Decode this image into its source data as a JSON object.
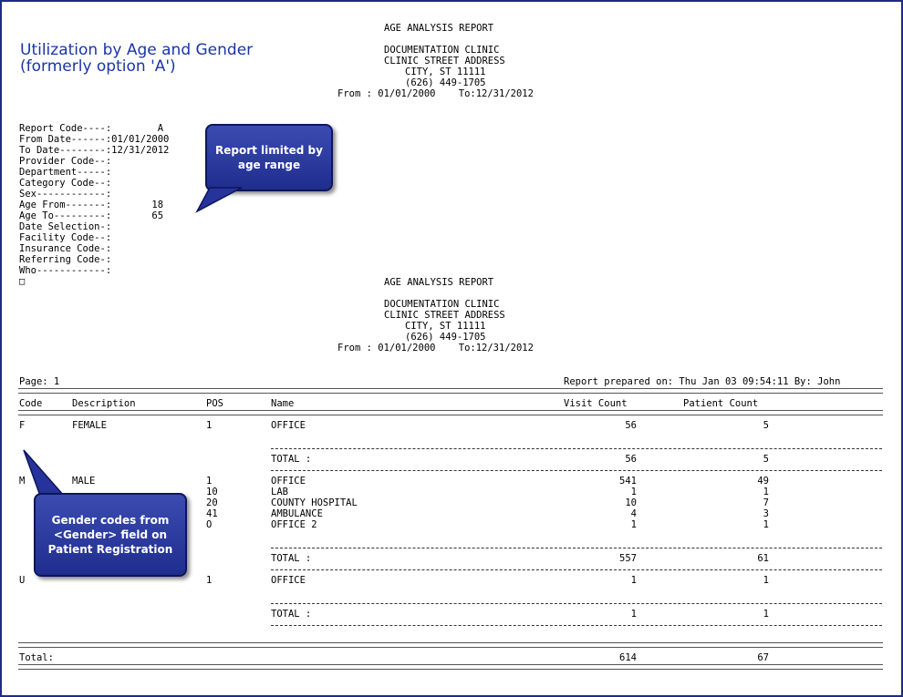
{
  "title": {
    "line1": "Utilization by Age and Gender",
    "line2": "(formerly option 'A')"
  },
  "report_header": {
    "name": "AGE ANALYSIS REPORT",
    "clinic": "DOCUMENTATION CLINIC",
    "address": "CLINIC STREET ADDRESS",
    "city": "CITY, ST 11111",
    "phone": "(626) 449-1705",
    "range": "From : 01/01/2000    To:12/31/2012"
  },
  "params": [
    "Report Code----:        A",
    "From Date------:01/01/2000",
    "To Date--------:12/31/2012",
    "Provider Code--:",
    "Department-----:",
    "Category Code--:",
    "Sex------------:",
    "Age From-------:       18",
    "Age To---------:       65",
    "Date Selection-:",
    "Facility Code--:",
    "Insurance Code-:",
    "Referring Code-:",
    "Who------------:",
    "□"
  ],
  "callouts": {
    "age": "Report limited by age range",
    "gender": "Gender codes from <Gender> field on Patient Registration"
  },
  "page_line": {
    "page": "Page: 1",
    "prepared": "Report prepared on: Thu Jan 03 09:54:11 By: John"
  },
  "columns": {
    "code": "Code",
    "description": "Description",
    "pos": "POS",
    "name": "Name",
    "visit": "Visit Count",
    "patient": "Patient Count"
  },
  "groups": [
    {
      "code": "F",
      "description": "FEMALE",
      "rows": [
        {
          "pos": "1",
          "name": "OFFICE",
          "visit": "56",
          "patient": "5"
        }
      ],
      "total_label": "TOTAL :",
      "total_visit": "56",
      "total_patient": "5"
    },
    {
      "code": "M",
      "description": "MALE",
      "rows": [
        {
          "pos": "1",
          "name": "OFFICE",
          "visit": "541",
          "patient": "49"
        },
        {
          "pos": "10",
          "name": "LAB",
          "visit": "1",
          "patient": "1"
        },
        {
          "pos": "20",
          "name": "COUNTY HOSPITAL",
          "visit": "10",
          "patient": "7"
        },
        {
          "pos": "41",
          "name": "AMBULANCE",
          "visit": "4",
          "patient": "3"
        },
        {
          "pos": "O",
          "name": "OFFICE 2",
          "visit": "1",
          "patient": "1"
        }
      ],
      "total_label": "TOTAL :",
      "total_visit": "557",
      "total_patient": "61"
    },
    {
      "code": "U",
      "description": "",
      "rows": [
        {
          "pos": "1",
          "name": "OFFICE",
          "visit": "1",
          "patient": "1"
        }
      ],
      "total_label": "TOTAL :",
      "total_visit": "1",
      "total_patient": "1"
    }
  ],
  "grand_total": {
    "label": "Total:",
    "visit": "614",
    "patient": "67"
  }
}
